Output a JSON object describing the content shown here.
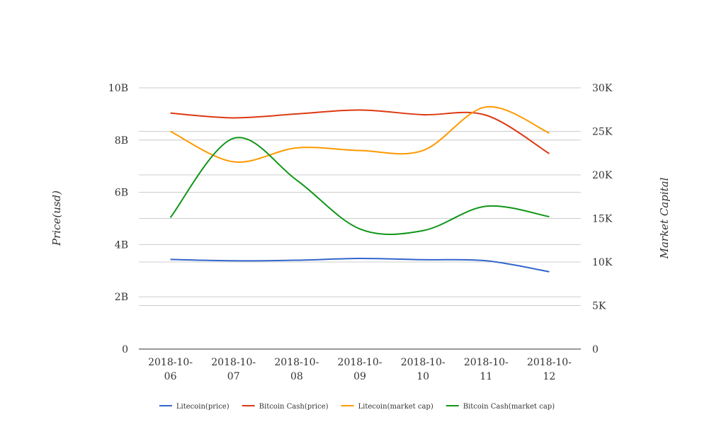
{
  "chart_data": {
    "type": "line",
    "categories": [
      "2018-10-06",
      "2018-10-07",
      "2018-10-08",
      "2018-10-09",
      "2018-10-10",
      "2018-10-11",
      "2018-10-12"
    ],
    "category_lines": [
      [
        "2018-10-",
        "06"
      ],
      [
        "2018-10-",
        "07"
      ],
      [
        "2018-10-",
        "08"
      ],
      [
        "2018-10-",
        "09"
      ],
      [
        "2018-10-",
        "10"
      ],
      [
        "2018-10-",
        "11"
      ],
      [
        "2018-10-",
        "12"
      ]
    ],
    "y_left": {
      "label": "Price(usd)",
      "ylim": [
        0,
        10000000000
      ],
      "ticks": [
        0,
        2000000000,
        4000000000,
        6000000000,
        8000000000,
        10000000000
      ],
      "tick_labels": [
        "0",
        "2B",
        "4B",
        "6B",
        "8B",
        "10B"
      ]
    },
    "y_right": {
      "label": "Market Capital",
      "ylim": [
        0,
        30000
      ],
      "ticks": [
        0,
        5000,
        10000,
        15000,
        20000,
        25000,
        30000
      ],
      "tick_labels": [
        "0",
        "5K",
        "10K",
        "15K",
        "20K",
        "25K",
        "30K"
      ]
    },
    "grid": true,
    "legend_position": "bottom",
    "series": [
      {
        "name": "Litecoin(price)",
        "axis": "left",
        "color": "#3366cc",
        "values": [
          3430000000,
          3380000000,
          3400000000,
          3470000000,
          3420000000,
          3380000000,
          2960000000
        ]
      },
      {
        "name": "Bitcoin Cash(price)",
        "axis": "left",
        "color": "#dc3912",
        "values": [
          9030000000,
          8850000000,
          9000000000,
          9150000000,
          8970000000,
          8950000000,
          7480000000
        ]
      },
      {
        "name": "Litecoin(market cap)",
        "axis": "right",
        "color": "#ff9900",
        "values": [
          25000,
          21500,
          23100,
          22800,
          22800,
          27800,
          24800
        ]
      },
      {
        "name": "Bitcoin Cash(market cap)",
        "axis": "right",
        "color": "#109618",
        "values": [
          15100,
          24200,
          19400,
          13800,
          13600,
          16400,
          15200
        ]
      }
    ]
  }
}
